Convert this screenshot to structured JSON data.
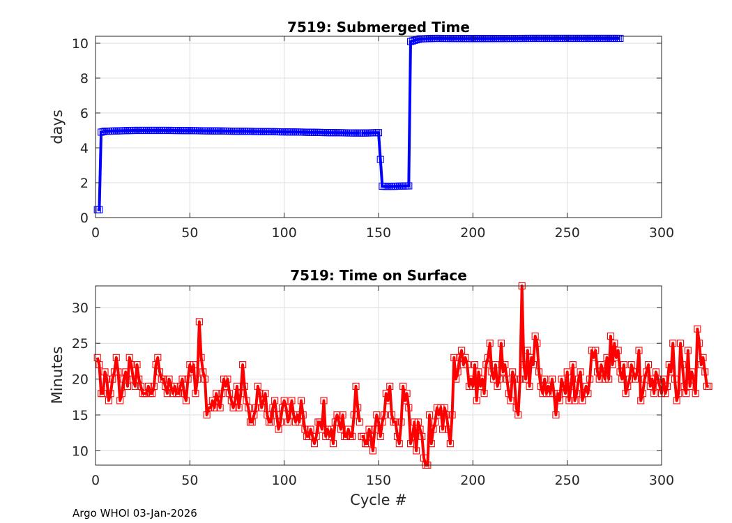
{
  "footer": "Argo WHOI 03-Jan-2026",
  "chart_data": [
    {
      "type": "line",
      "title": "7519: Submerged Time",
      "xlabel": "",
      "ylabel": "days",
      "xlim": [
        0,
        300
      ],
      "ylim": [
        0,
        10.4
      ],
      "xticks": [
        0,
        50,
        100,
        150,
        200,
        250,
        300
      ],
      "yticks": [
        0,
        2,
        4,
        6,
        8,
        10
      ],
      "grid": true,
      "color": "#0000ff",
      "marker": "square",
      "gap_after_cycle": 140,
      "series_points": [
        [
          1,
          0.45
        ],
        [
          2,
          0.45
        ],
        [
          3,
          4.9
        ],
        [
          5,
          4.95
        ],
        [
          20,
          5.0
        ],
        [
          40,
          5.0
        ],
        [
          55,
          4.98
        ],
        [
          70,
          4.96
        ],
        [
          90,
          4.93
        ],
        [
          110,
          4.9
        ],
        [
          125,
          4.87
        ],
        [
          140,
          4.85
        ],
        [
          142,
          4.85
        ],
        [
          150,
          4.87
        ],
        [
          152,
          1.8
        ],
        [
          155,
          1.78
        ],
        [
          160,
          1.8
        ],
        [
          166,
          1.82
        ],
        [
          167,
          10.1
        ],
        [
          170,
          10.2
        ],
        [
          172,
          10.25
        ],
        [
          180,
          10.28
        ],
        [
          200,
          10.27
        ],
        [
          230,
          10.28
        ],
        [
          260,
          10.28
        ],
        [
          278,
          10.28
        ]
      ]
    },
    {
      "type": "line",
      "title": "7519: Time on Surface",
      "xlabel": "Cycle #",
      "ylabel": "Minutes",
      "xlim": [
        0,
        300
      ],
      "ylim": [
        8,
        33
      ],
      "xticks": [
        0,
        50,
        100,
        150,
        200,
        250,
        300
      ],
      "yticks": [
        10,
        15,
        20,
        25,
        30
      ],
      "grid": true,
      "color": "#ff0000",
      "marker": "square",
      "gap_after_cycle": 140,
      "values": [
        23,
        22,
        18,
        18,
        21,
        20,
        17,
        18,
        20,
        21,
        23,
        21,
        17,
        18,
        20,
        21,
        19,
        23,
        22,
        20,
        19,
        22,
        20,
        19,
        18,
        18,
        18,
        19,
        18,
        18,
        19,
        22,
        23,
        21,
        20,
        20,
        19,
        18,
        20,
        19,
        18,
        19,
        18,
        18,
        19,
        20,
        18,
        17,
        20,
        22,
        21,
        22,
        18,
        20,
        28,
        23,
        21,
        20,
        15,
        16,
        16,
        17,
        16,
        18,
        17,
        16,
        18,
        20,
        19,
        20,
        18,
        17,
        16,
        17,
        19,
        16,
        18,
        22,
        19,
        17,
        16,
        14,
        14,
        15,
        16,
        19,
        18,
        16,
        17,
        18,
        15,
        14,
        14,
        16,
        17,
        15,
        13,
        14,
        16,
        17,
        16,
        14,
        15,
        17,
        15,
        14,
        15,
        14,
        17,
        15,
        13,
        12,
        12,
        13,
        12,
        11,
        12,
        14,
        14,
        13,
        17,
        12,
        13,
        12,
        13,
        11,
        14,
        15,
        14,
        13,
        15,
        12,
        12,
        13,
        12,
        12,
        15,
        19,
        16,
        14,
        12,
        12,
        11,
        11,
        13,
        12,
        10,
        13,
        15,
        14,
        12,
        14,
        15,
        18,
        17,
        19,
        15,
        14,
        14,
        12,
        11,
        14,
        19,
        17,
        18,
        16,
        11,
        12,
        14,
        10,
        14,
        13,
        12,
        9,
        8,
        8,
        15,
        11,
        13,
        14,
        16,
        15,
        16,
        13,
        16,
        15,
        13,
        11,
        15,
        23,
        20,
        21,
        23,
        24,
        22,
        23,
        22,
        19,
        20,
        19,
        22,
        17,
        21,
        19,
        20,
        18,
        22,
        23,
        25,
        21,
        20,
        22,
        19,
        20,
        25,
        21,
        22,
        20,
        18,
        17,
        21,
        20,
        16,
        15,
        20,
        33,
        22,
        20,
        24,
        19,
        23,
        22,
        26,
        25,
        21,
        19,
        18,
        20,
        18,
        19,
        18,
        20,
        18,
        15,
        18,
        17,
        20,
        19,
        18,
        21,
        17,
        19,
        22,
        17,
        18,
        20,
        21,
        17,
        18,
        19,
        18,
        20,
        24,
        23,
        24,
        21,
        20,
        22,
        21,
        20,
        23,
        20,
        26,
        22,
        25,
        23,
        24,
        21,
        20,
        22,
        18,
        19,
        20,
        22,
        21,
        20,
        21,
        24,
        17,
        18,
        20,
        21,
        22,
        19,
        20,
        18,
        21,
        20,
        19,
        18,
        20,
        18,
        19,
        22,
        21,
        25,
        20,
        17,
        18,
        25,
        22,
        19,
        18,
        24,
        19,
        21,
        20,
        18,
        27,
        25,
        22,
        23,
        21,
        19,
        19
      ]
    }
  ]
}
